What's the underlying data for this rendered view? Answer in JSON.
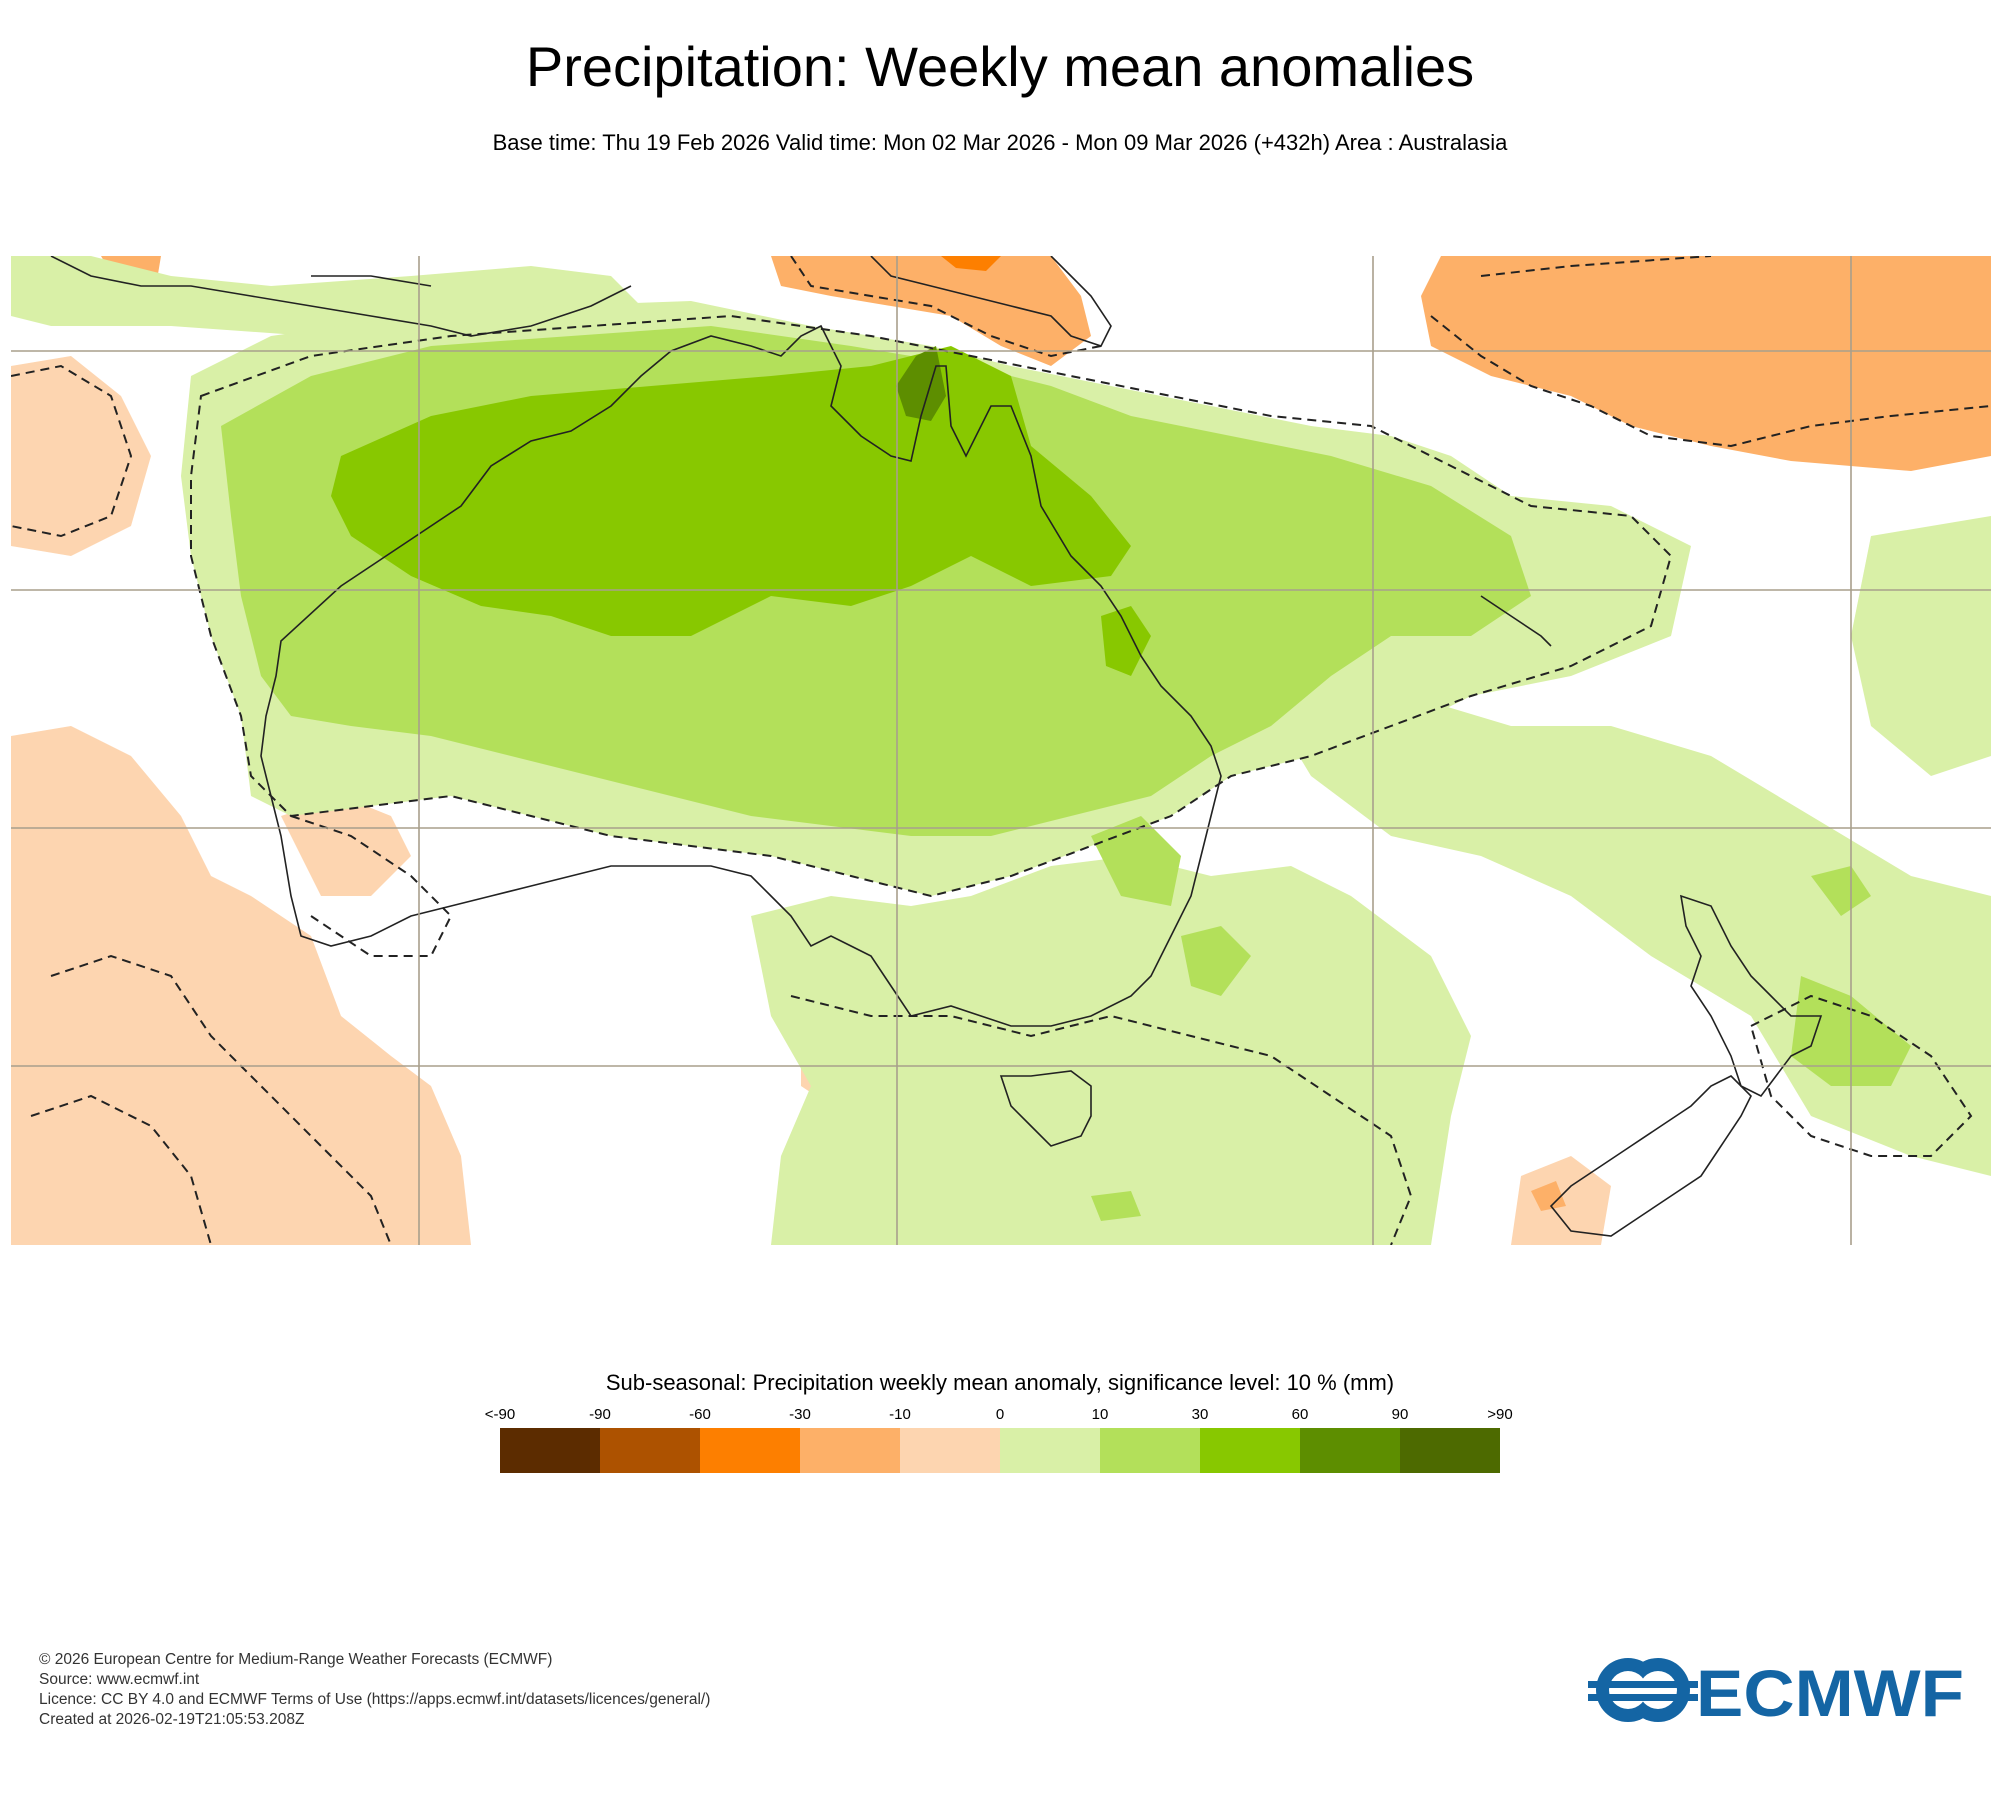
{
  "title": "Precipitation: Weekly mean anomalies",
  "subtitle": "Base time: Thu 19 Feb 2026 Valid time: Mon 02 Mar 2026 - Mon 09 Mar 2026 (+432h) Area : Australasia",
  "map": {
    "area": "Australasia",
    "fill_colors": {
      "light_orange": "#fdd5b0",
      "orange": "#fdb068",
      "dark_orange": "#fd7f00",
      "light_green": "#d9f0a7",
      "green": "#b3e05a",
      "strong_green": "#88c800",
      "dark_green": "#5d8e00"
    },
    "coast_color": "#222222",
    "grid_color": "#a89f8c"
  },
  "legend": {
    "title": "Sub-seasonal: Precipitation weekly mean anomaly, significance level: 10 % (mm)",
    "labels": [
      "<-90",
      "-90",
      "-60",
      "-30",
      "-10",
      "0",
      "10",
      "30",
      "60",
      "90",
      ">90"
    ],
    "colors": [
      "#5c2c00",
      "#ad5200",
      "#fd7f00",
      "#fdb068",
      "#fdd5b0",
      "#d9f0a7",
      "#b3e05a",
      "#88c800",
      "#5d8e00",
      "#4d6a00"
    ]
  },
  "footer": {
    "copyright": "© 2026 European Centre for Medium-Range Weather Forecasts (ECMWF)",
    "source": "Source: www.ecmwf.int",
    "licence": "Licence: CC BY 4.0 and ECMWF Terms of Use (https://apps.ecmwf.int/datasets/licences/general/)",
    "created": "Created at 2026-02-19T21:05:53.208Z"
  },
  "logo": {
    "text": "ECMWF",
    "color": "#1465a4"
  }
}
